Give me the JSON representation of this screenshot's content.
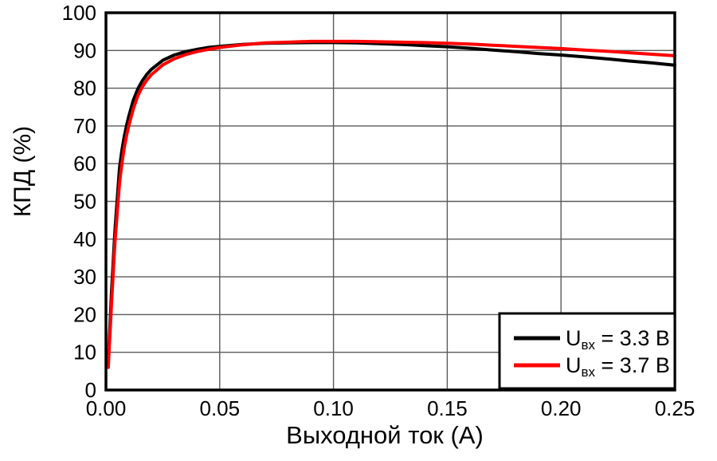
{
  "chart_data": {
    "type": "line",
    "title": "",
    "xlabel": "Выходной ток (А)",
    "ylabel": "КПД (%)",
    "xlim": [
      0,
      0.25
    ],
    "ylim": [
      0,
      100
    ],
    "x_ticks": [
      0,
      0.05,
      0.1,
      0.15,
      0.2,
      0.25
    ],
    "x_tick_labels": [
      "0.00",
      "0.05",
      "0.10",
      "0.15",
      "0.20",
      "0.25"
    ],
    "y_ticks": [
      0,
      10,
      20,
      30,
      40,
      50,
      60,
      70,
      80,
      90,
      100
    ],
    "y_tick_labels": [
      "0",
      "10",
      "20",
      "30",
      "40",
      "50",
      "60",
      "70",
      "80",
      "90",
      "100"
    ],
    "grid": true,
    "grid_color": "#5a5a5a",
    "frame_color": "#000000",
    "background_color": "#ffffff",
    "legend": {
      "position": "lower-right",
      "border_color": "#000000",
      "fill_color": "#ffffff"
    },
    "series": [
      {
        "name": "Uвх = 3.3 В",
        "label_main": "U",
        "label_sub": "вх",
        "label_rest": " = 3.3 В",
        "color": "#000000",
        "points": [
          [
            0.001,
            7
          ],
          [
            0.0015,
            14
          ],
          [
            0.002,
            20
          ],
          [
            0.0025,
            26.5
          ],
          [
            0.003,
            32
          ],
          [
            0.0035,
            37.5
          ],
          [
            0.004,
            42.5
          ],
          [
            0.0045,
            47
          ],
          [
            0.005,
            51
          ],
          [
            0.006,
            59
          ],
          [
            0.007,
            63.5
          ],
          [
            0.008,
            67
          ],
          [
            0.009,
            70
          ],
          [
            0.01,
            72.5
          ],
          [
            0.012,
            76.8
          ],
          [
            0.014,
            79.8
          ],
          [
            0.016,
            82.0
          ],
          [
            0.018,
            83.7
          ],
          [
            0.02,
            85.0
          ],
          [
            0.025,
            87.4
          ],
          [
            0.03,
            88.8
          ],
          [
            0.035,
            89.7
          ],
          [
            0.04,
            90.3
          ],
          [
            0.045,
            90.8
          ],
          [
            0.05,
            91.1
          ],
          [
            0.06,
            91.6
          ],
          [
            0.07,
            91.9
          ],
          [
            0.08,
            92.0
          ],
          [
            0.09,
            92.1
          ],
          [
            0.1,
            92.1
          ],
          [
            0.11,
            92.0
          ],
          [
            0.12,
            91.8
          ],
          [
            0.13,
            91.6
          ],
          [
            0.14,
            91.3
          ],
          [
            0.15,
            91.0
          ],
          [
            0.16,
            90.6
          ],
          [
            0.17,
            90.1
          ],
          [
            0.18,
            89.7
          ],
          [
            0.19,
            89.2
          ],
          [
            0.2,
            88.8
          ],
          [
            0.21,
            88.3
          ],
          [
            0.22,
            87.8
          ],
          [
            0.23,
            87.2
          ],
          [
            0.24,
            86.7
          ],
          [
            0.25,
            86.1
          ]
        ]
      },
      {
        "name": "Uвх = 3.7 В",
        "label_main": "U",
        "label_sub": "вх",
        "label_rest": " = 3.7 В",
        "color": "#ff0000",
        "points": [
          [
            0.001,
            6
          ],
          [
            0.0015,
            12
          ],
          [
            0.002,
            17.5
          ],
          [
            0.0025,
            23.5
          ],
          [
            0.003,
            29
          ],
          [
            0.0035,
            34.5
          ],
          [
            0.004,
            39.5
          ],
          [
            0.0045,
            43.5
          ],
          [
            0.005,
            47.5
          ],
          [
            0.006,
            55
          ],
          [
            0.007,
            60
          ],
          [
            0.008,
            64
          ],
          [
            0.009,
            67.3
          ],
          [
            0.01,
            70.0
          ],
          [
            0.012,
            74.5
          ],
          [
            0.014,
            78.0
          ],
          [
            0.016,
            80.4
          ],
          [
            0.018,
            82.2
          ],
          [
            0.02,
            83.6
          ],
          [
            0.025,
            86.2
          ],
          [
            0.03,
            87.8
          ],
          [
            0.035,
            88.9
          ],
          [
            0.04,
            89.7
          ],
          [
            0.045,
            90.3
          ],
          [
            0.05,
            90.8
          ],
          [
            0.06,
            91.5
          ],
          [
            0.07,
            92.0
          ],
          [
            0.08,
            92.2
          ],
          [
            0.09,
            92.4
          ],
          [
            0.1,
            92.4
          ],
          [
            0.11,
            92.4
          ],
          [
            0.12,
            92.3
          ],
          [
            0.13,
            92.2
          ],
          [
            0.14,
            92.1
          ],
          [
            0.15,
            91.9
          ],
          [
            0.16,
            91.7
          ],
          [
            0.17,
            91.4
          ],
          [
            0.18,
            91.1
          ],
          [
            0.19,
            90.8
          ],
          [
            0.2,
            90.5
          ],
          [
            0.21,
            90.1
          ],
          [
            0.22,
            89.8
          ],
          [
            0.23,
            89.4
          ],
          [
            0.24,
            89.0
          ],
          [
            0.25,
            88.6
          ]
        ]
      }
    ]
  }
}
